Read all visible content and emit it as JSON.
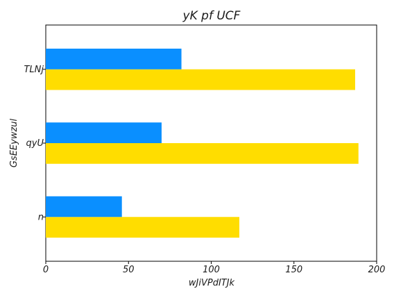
{
  "chart_data": {
    "type": "bar",
    "orientation": "horizontal",
    "title": "yK pf UCF",
    "xlabel": "wJiVPdITJk",
    "ylabel": "GsEEywzul",
    "categories": [
      "n",
      "qyU",
      "TLNj"
    ],
    "series": [
      {
        "values": [
          117,
          189,
          187
        ],
        "color": "#FFDD00"
      },
      {
        "values": [
          46,
          70,
          82
        ],
        "color": "#0A8FFF"
      }
    ],
    "xlim": [
      0,
      200
    ],
    "xticks": [
      0,
      50,
      100,
      150,
      200
    ],
    "grid": false,
    "legend": false
  }
}
